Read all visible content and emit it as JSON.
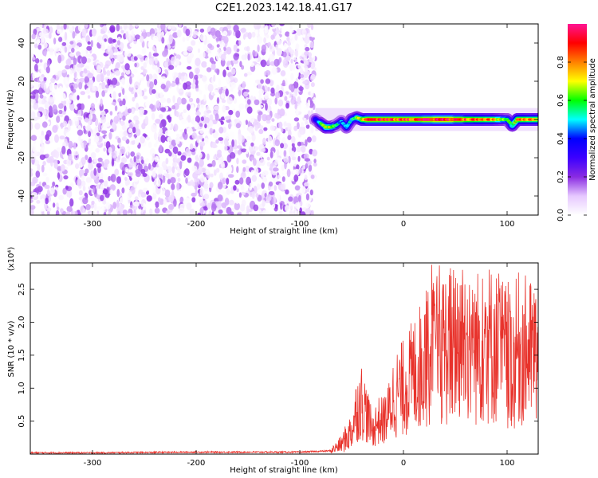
{
  "title": "C2E1.2023.142.18.41.G17",
  "chart_data": [
    {
      "type": "heatmap",
      "title": "C2E1.2023.142.18.41.G17",
      "xlabel": "Height of straight line (km)",
      "ylabel": "Frequency (Hz)",
      "xlim": [
        -360,
        130
      ],
      "ylim": [
        -50,
        50
      ],
      "x_ticks": [
        -300,
        -200,
        -100,
        0,
        100
      ],
      "y_ticks": [
        -40,
        -20,
        0,
        20,
        40
      ],
      "colorbar": {
        "label": "Normalized spectral amplitude",
        "range": [
          0.0,
          1.0
        ],
        "ticks": [
          0.0,
          0.2,
          0.4,
          0.6,
          0.8
        ],
        "colors": [
          "#ffffff",
          "#e6c8ff",
          "#8a2be2",
          "#3c00ff",
          "#0000ff",
          "#00ffff",
          "#00ff00",
          "#ffff00",
          "#ff8000",
          "#ff0000",
          "#ff1493"
        ]
      },
      "regions": [
        {
          "x_range": [
            -360,
            -85
          ],
          "y_range": [
            -50,
            50
          ],
          "pattern": "scattered noise",
          "amplitude_range": [
            0.0,
            0.2
          ]
        },
        {
          "x_range": [
            -85,
            130
          ],
          "y_range": [
            -6,
            6
          ],
          "pattern": "narrow signal band near 0 Hz",
          "amplitude_range": [
            0.1,
            1.0
          ]
        }
      ],
      "signal_ridge": {
        "x": [
          -85,
          -80,
          -75,
          -70,
          -65,
          -60,
          -55,
          -50,
          -45,
          -40,
          -35,
          -30,
          -20,
          -10,
          0,
          10,
          20,
          30,
          40,
          50,
          60,
          70,
          80,
          90,
          95,
          100,
          105,
          110,
          120,
          130
        ],
        "y": [
          0,
          -2,
          -4,
          -4,
          -3,
          -1,
          -4,
          0,
          1,
          0,
          0,
          0,
          0,
          0,
          0,
          0,
          0,
          0,
          0,
          0,
          0,
          0,
          0,
          0,
          0,
          0,
          -3,
          0,
          0,
          0
        ],
        "amplitude": [
          0.35,
          0.55,
          0.65,
          0.7,
          0.55,
          0.45,
          0.5,
          0.55,
          0.6,
          0.7,
          0.9,
          0.85,
          0.9,
          0.85,
          0.9,
          0.85,
          0.9,
          0.9,
          0.95,
          0.9,
          0.85,
          0.8,
          0.8,
          0.75,
          0.65,
          0.6,
          0.55,
          0.8,
          0.8,
          0.75
        ]
      }
    },
    {
      "type": "line",
      "xlabel": "Height of straight line (km)",
      "ylabel": "SNR (10 * v/v)",
      "y_multiplier": "(x10⁴)",
      "xlim": [
        -360,
        130
      ],
      "ylim": [
        0,
        2.9
      ],
      "x_ticks": [
        -300,
        -200,
        -100,
        0,
        100
      ],
      "y_ticks": [
        0.5,
        1.0,
        1.5,
        2.0,
        2.5
      ],
      "color": "#e8322b",
      "series": [
        {
          "x": [
            -360,
            -300,
            -200,
            -100,
            -70,
            -60,
            -50,
            -45,
            -40,
            -35,
            -30,
            -25,
            -20,
            -15,
            -10,
            -5,
            0,
            10,
            20,
            30,
            40,
            50,
            60,
            70,
            80,
            90,
            100,
            105,
            110,
            120,
            130
          ],
          "y": [
            0.02,
            0.02,
            0.03,
            0.03,
            0.05,
            0.15,
            0.35,
            0.7,
            0.8,
            0.6,
            0.35,
            0.5,
            0.5,
            0.6,
            0.85,
            0.95,
            1.0,
            1.2,
            1.4,
            1.55,
            1.6,
            1.7,
            1.75,
            1.6,
            1.7,
            1.6,
            1.5,
            1.3,
            1.6,
            1.55,
            1.5
          ]
        }
      ]
    }
  ]
}
